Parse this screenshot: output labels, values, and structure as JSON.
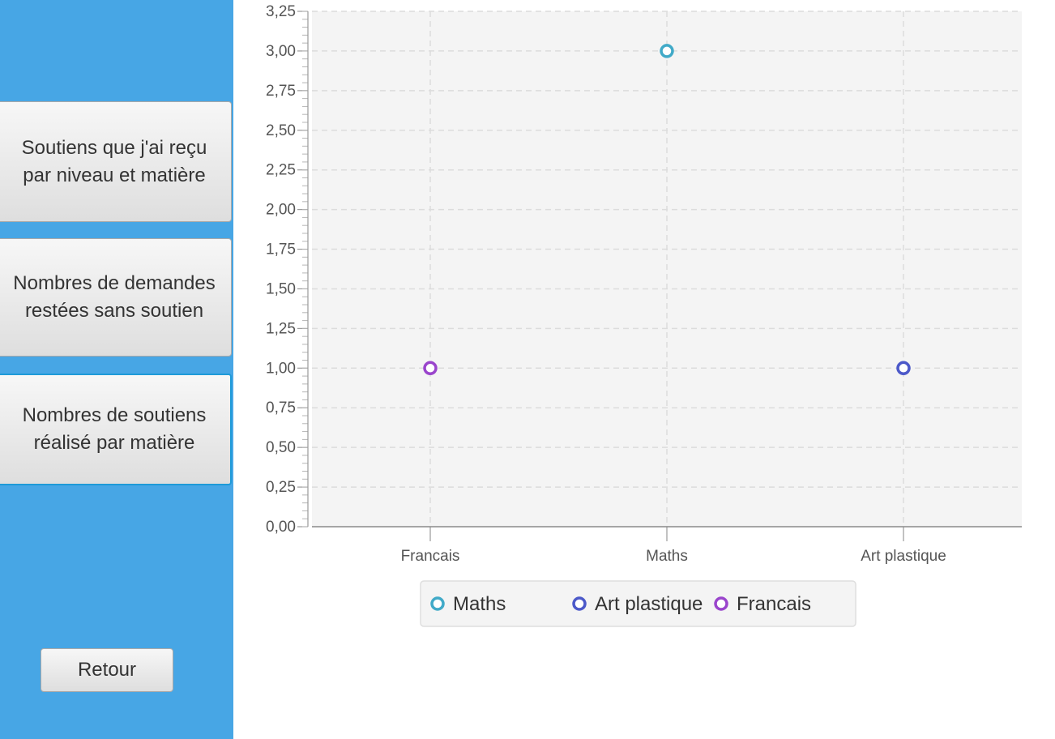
{
  "sidebar": {
    "buttons": [
      {
        "label": "Soutiens que j'ai reçu\npar niveau et matière"
      },
      {
        "label": "Nombres de demandes\nrestées sans soutien"
      },
      {
        "label": "Nombres de soutiens\nréalisé par matière"
      }
    ],
    "back_label": "Retour"
  },
  "chart_data": {
    "type": "scatter",
    "title": "",
    "xlabel": "",
    "ylabel": "",
    "categories": [
      "Francais",
      "Maths",
      "Art plastique"
    ],
    "ylim": [
      0,
      3.25
    ],
    "yticks": [
      "0,00",
      "0,25",
      "0,50",
      "0,75",
      "1,00",
      "1,25",
      "1,50",
      "1,75",
      "2,00",
      "2,25",
      "2,50",
      "2,75",
      "3,00",
      "3,25"
    ],
    "grid": true,
    "legend_position": "bottom",
    "series": [
      {
        "name": "Maths",
        "color": "#41aac8",
        "points": [
          {
            "x": "Maths",
            "y": 3
          }
        ]
      },
      {
        "name": "Art plastique",
        "color": "#4c59c9",
        "points": [
          {
            "x": "Art plastique",
            "y": 1
          }
        ]
      },
      {
        "name": "Francais",
        "color": "#9a45cc",
        "points": [
          {
            "x": "Francais",
            "y": 1
          }
        ]
      }
    ]
  }
}
